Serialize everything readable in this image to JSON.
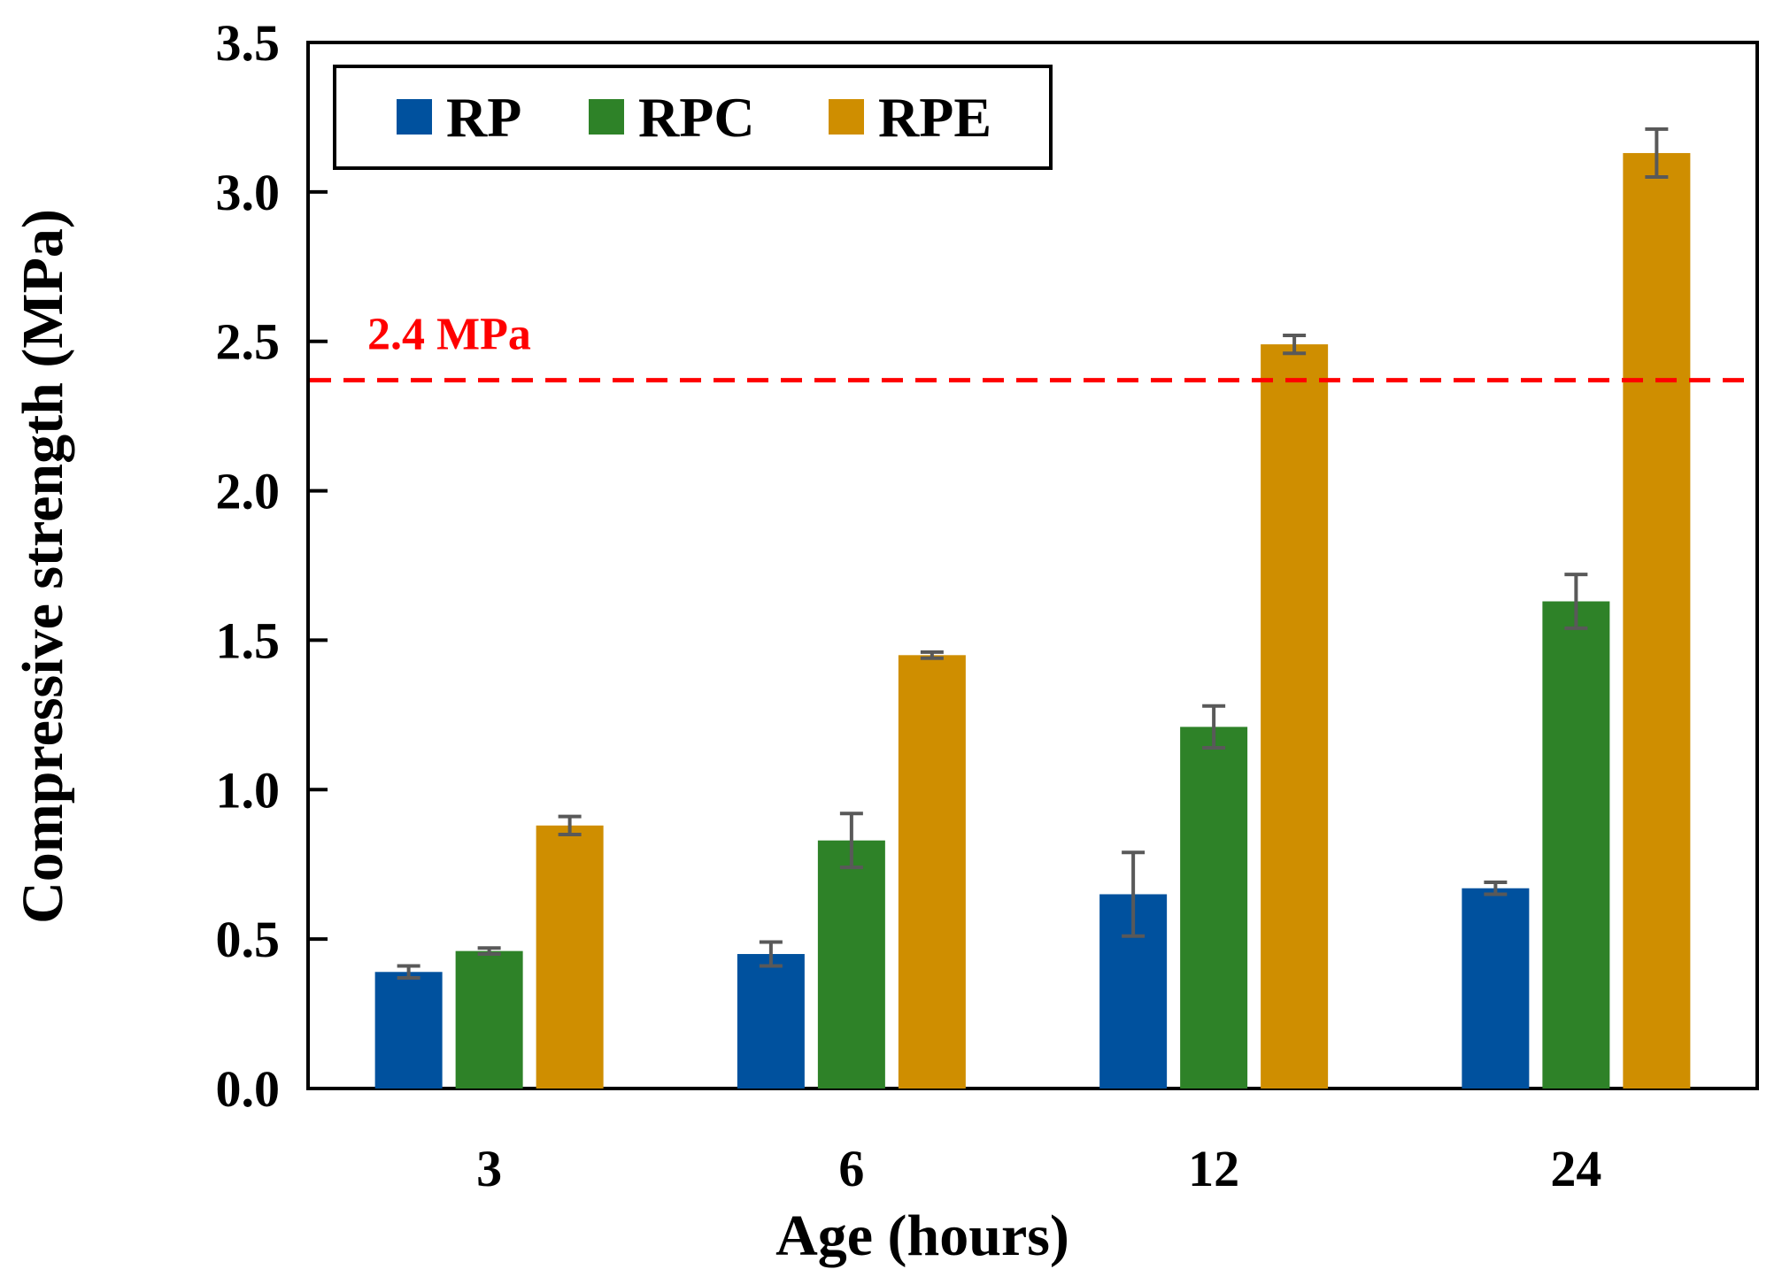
{
  "chart_data": {
    "type": "bar",
    "title": "",
    "xlabel": "Age (hours)",
    "ylabel": "Compressive strength (MPa)",
    "categories": [
      "3",
      "6",
      "12",
      "24"
    ],
    "ylim": [
      0,
      3.5
    ],
    "yticks": [
      0.0,
      0.5,
      1.0,
      1.5,
      2.0,
      2.5,
      3.0,
      3.5
    ],
    "ytick_labels": [
      "0.0",
      "0.5",
      "1.0",
      "1.5",
      "2.0",
      "2.5",
      "3.0",
      "3.5"
    ],
    "legend_position": "top-left",
    "grid": false,
    "series": [
      {
        "name": "RP",
        "color": "#00519E",
        "values": [
          0.39,
          0.45,
          0.65,
          0.67
        ],
        "errors": [
          0.02,
          0.04,
          0.14,
          0.02
        ]
      },
      {
        "name": "RPC",
        "color": "#2E8228",
        "values": [
          0.46,
          0.83,
          1.21,
          1.63
        ],
        "errors": [
          0.01,
          0.09,
          0.07,
          0.09
        ]
      },
      {
        "name": "RPE",
        "color": "#CF8E00",
        "values": [
          0.88,
          1.45,
          2.49,
          3.13
        ],
        "errors": [
          0.03,
          0.01,
          0.03,
          0.08
        ]
      }
    ],
    "reference_line": {
      "value": 2.37,
      "label": "2.4 MPa",
      "color": "#FF0000",
      "style": "dashed"
    },
    "error_bar_color": "#595959"
  }
}
